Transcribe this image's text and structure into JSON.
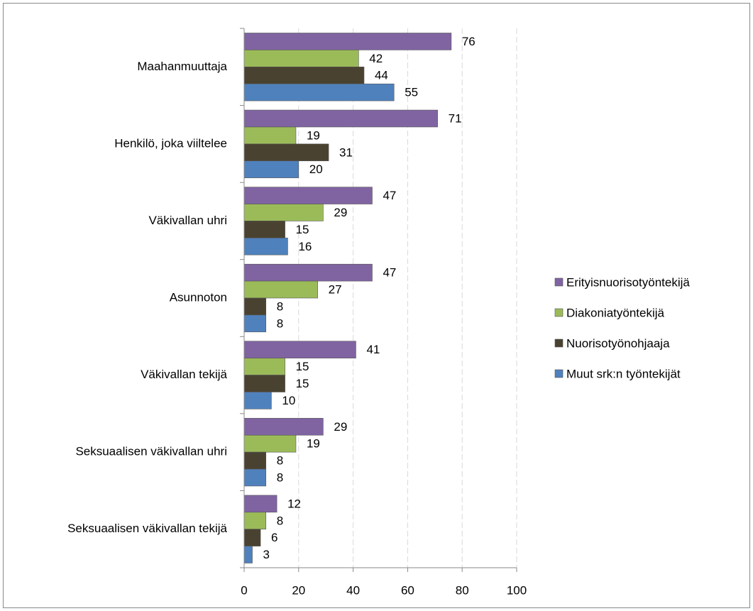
{
  "chart_data": {
    "type": "barh",
    "categories": [
      "Maahanmuuttaja",
      "Henkilö, joka viiltelee",
      "Väkivallan uhri",
      "Asunnoton",
      "Väkivallan tekijä",
      "Seksuaalisen väkivallan uhri",
      "Seksuaalisen väkivallan tekijä"
    ],
    "series": [
      {
        "name": "Erityisnuorisotyöntekijä",
        "color": "#8064a2",
        "values": [
          76,
          71,
          47,
          47,
          41,
          29,
          12
        ]
      },
      {
        "name": "Diakoniatyöntekijä",
        "color": "#9bbb59",
        "values": [
          42,
          19,
          29,
          27,
          15,
          19,
          8
        ]
      },
      {
        "name": "Nuorisotyönohjaaja",
        "color": "#4a4230",
        "values": [
          44,
          31,
          15,
          8,
          15,
          8,
          6
        ]
      },
      {
        "name": "Muut srk:n työntekijät",
        "color": "#4f81bd",
        "values": [
          55,
          20,
          16,
          8,
          10,
          8,
          3
        ]
      }
    ],
    "xlim": [
      0,
      100
    ],
    "xticks": [
      0,
      20,
      40,
      60,
      80,
      100
    ],
    "grid": true,
    "legend": "right"
  }
}
